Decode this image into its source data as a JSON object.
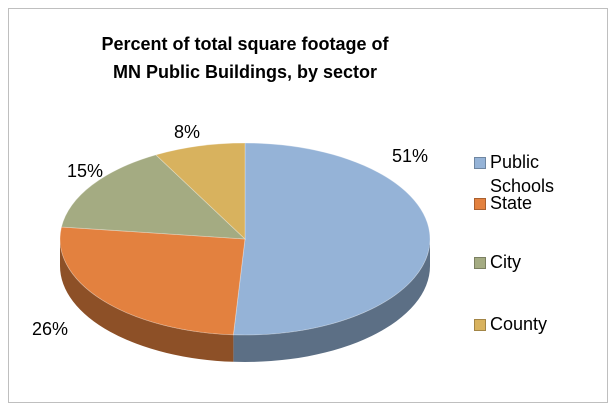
{
  "chart_data": {
    "type": "pie",
    "title": "Percent of total square footage of MN Public Buildings, by sector",
    "categories": [
      "Public Schools",
      "State",
      "City",
      "County"
    ],
    "values": [
      51,
      26,
      15,
      8
    ],
    "value_labels": [
      "51%",
      "26%",
      "15%",
      "8%"
    ],
    "colors": [
      "#95b3d7",
      "#e3813f",
      "#a4ab82",
      "#d8b25e"
    ],
    "legend": "right"
  }
}
